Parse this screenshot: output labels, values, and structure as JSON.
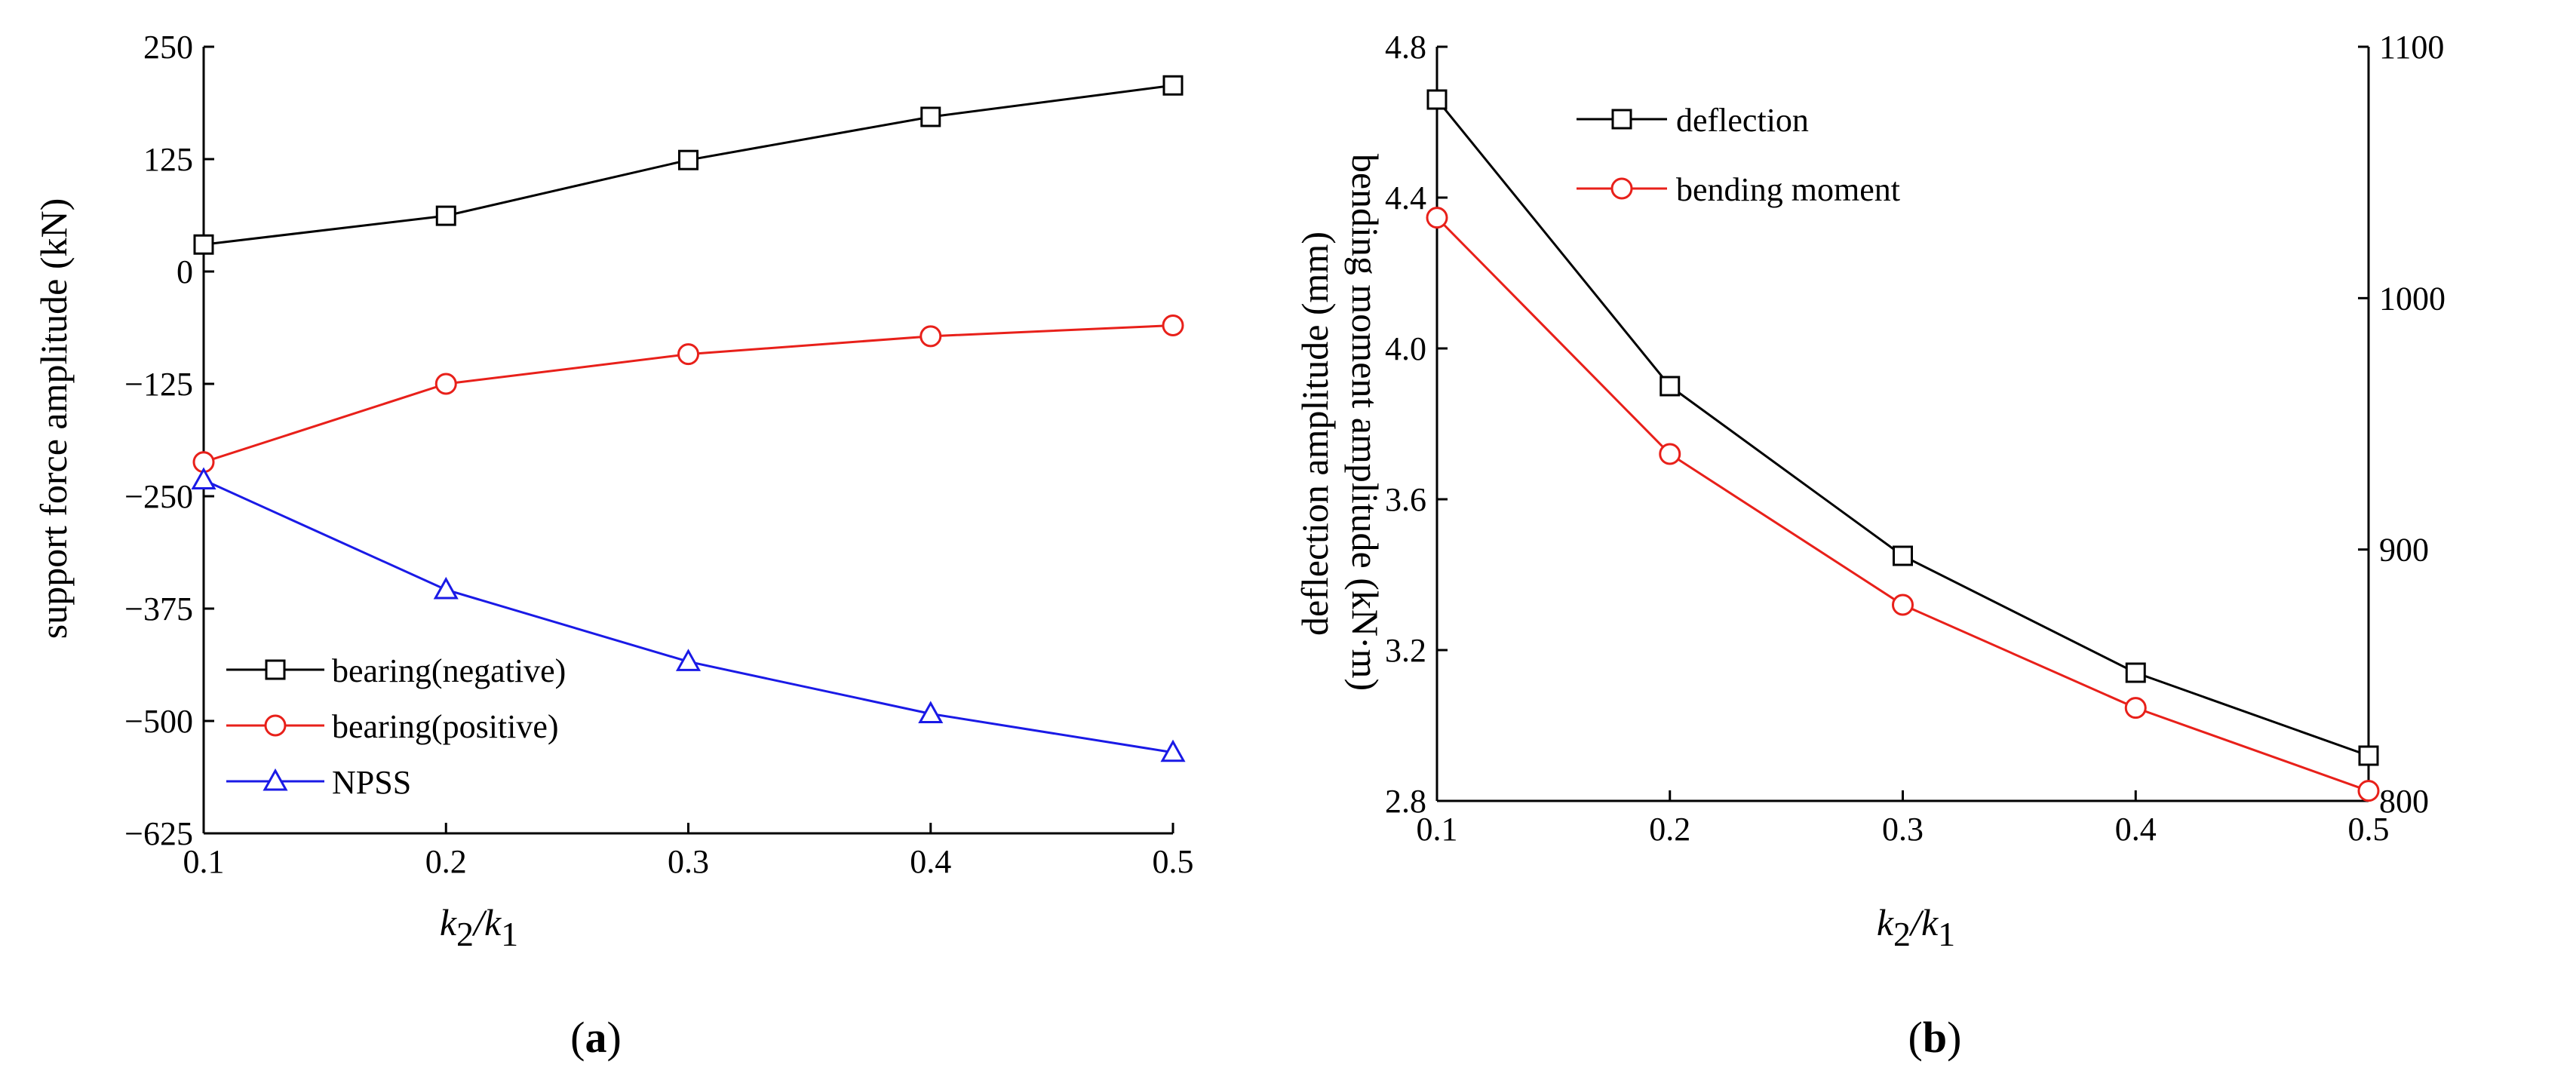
{
  "chart_data": [
    {
      "panel_label": {
        "open": "(",
        "letter": "a",
        "close": ")"
      },
      "type": "line",
      "title": "",
      "xlabel": {
        "k": "k",
        "sub2": "2",
        "slash": "/k",
        "sub1": "1"
      },
      "ylabel": "support force amplitude (kN)",
      "x": [
        0.1,
        0.2,
        0.3,
        0.4,
        0.5
      ],
      "xlim": [
        0.1,
        0.5
      ],
      "ylim": [
        -625,
        250
      ],
      "xticks": [
        0.1,
        0.2,
        0.3,
        0.4,
        0.5
      ],
      "xtick_labels": [
        "0.1",
        "0.2",
        "0.3",
        "0.4",
        "0.5"
      ],
      "yticks": [
        250,
        125,
        0,
        -125,
        -250,
        -375,
        -500,
        -625
      ],
      "ytick_labels": [
        "250",
        "125",
        "0",
        "−125",
        "−250",
        "−375",
        "−500",
        "−625"
      ],
      "legend_position": "bottom-left",
      "series": [
        {
          "name": "bearing(negative)",
          "values": [
            30,
            62,
            124,
            172,
            207
          ],
          "color": "#000000",
          "marker": "square"
        },
        {
          "name": "bearing(positive)",
          "values": [
            -212,
            -125,
            -92,
            -72,
            -60
          ],
          "color": "#e8201a",
          "marker": "circle"
        },
        {
          "name": "NPSS",
          "values": [
            -232,
            -354,
            -434,
            -492,
            -535
          ],
          "color": "#1a1ae6",
          "marker": "triangle"
        }
      ]
    },
    {
      "panel_label": {
        "open": "(",
        "letter": "b",
        "close": ")"
      },
      "type": "line",
      "title": "",
      "xlabel": {
        "k": "k",
        "sub2": "2",
        "slash": "/k",
        "sub1": "1"
      },
      "ylabel": "deflection amplitude (mm)",
      "y2label": "bending moment amplitude (kN·m)",
      "x": [
        0.1,
        0.2,
        0.3,
        0.4,
        0.5
      ],
      "xlim": [
        0.1,
        0.5
      ],
      "ylim": [
        2.8,
        4.8
      ],
      "y2lim": [
        800,
        1100
      ],
      "xticks": [
        0.1,
        0.2,
        0.3,
        0.4,
        0.5
      ],
      "xtick_labels": [
        "0.1",
        "0.2",
        "0.3",
        "0.4",
        "0.5"
      ],
      "yticks": [
        2.8,
        3.2,
        3.6,
        4.0,
        4.4,
        4.8
      ],
      "ytick_labels": [
        "2.8",
        "3.2",
        "3.6",
        "4.0",
        "4.4",
        "4.8"
      ],
      "y2ticks": [
        800,
        900,
        1000,
        1100
      ],
      "y2tick_labels": [
        "800",
        "900",
        "1000",
        "1100"
      ],
      "legend_position": "top-left",
      "series": [
        {
          "name": "deflection",
          "axis": "left",
          "values": [
            4.66,
            3.9,
            3.45,
            3.14,
            2.92
          ],
          "color": "#000000",
          "marker": "square"
        },
        {
          "name": "bending moment",
          "axis": "right",
          "values": [
            1032,
            938,
            878,
            837,
            804
          ],
          "color": "#e8201a",
          "marker": "circle"
        }
      ]
    }
  ]
}
